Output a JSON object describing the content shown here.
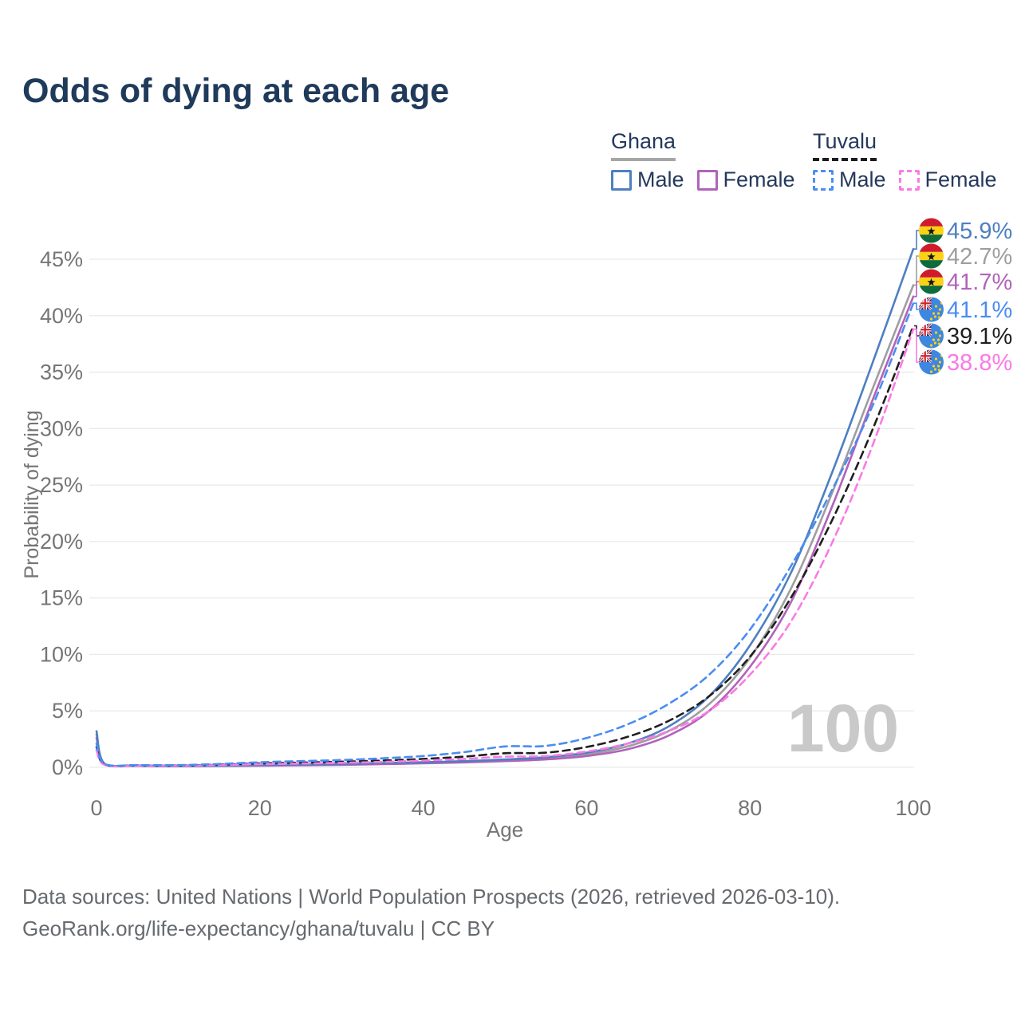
{
  "title": "Odds of dying at each age",
  "legend": {
    "groups": [
      {
        "country": "Ghana",
        "line_style": "solid",
        "underline_color": "#a6a6a6",
        "items": [
          {
            "label": "Male",
            "color": "#4e7fc1"
          },
          {
            "label": "Female",
            "color": "#b163ba"
          }
        ]
      },
      {
        "country": "Tuvalu",
        "line_style": "dashed",
        "underline_color": "#1c1c1c",
        "items": [
          {
            "label": "Male",
            "color": "#4a8df2"
          },
          {
            "label": "Female",
            "color": "#fa7ae4"
          }
        ]
      }
    ]
  },
  "watermark": "100",
  "footer": {
    "line1": "Data sources: United Nations | World Population Prospects (2026, retrieved 2026-03-10).",
    "line2": "GeoRank.org/life-expectancy/ghana/tuvalu | CC BY"
  },
  "chart_data": {
    "type": "line",
    "title": "Odds of dying at each age",
    "xlabel": "Age",
    "ylabel": "Probability of dying",
    "xlim": [
      0,
      100
    ],
    "ylim": [
      0,
      47.5
    ],
    "x_ticks": [
      0,
      20,
      40,
      60,
      80,
      100
    ],
    "y_ticks": [
      "0%",
      "5%",
      "10%",
      "15%",
      "20%",
      "25%",
      "30%",
      "35%",
      "40%",
      "45%"
    ],
    "grid": "horizontal",
    "legend_position": "top-right",
    "ages": [
      0,
      1,
      5,
      10,
      15,
      20,
      25,
      30,
      35,
      40,
      45,
      50,
      55,
      60,
      65,
      70,
      75,
      80,
      85,
      90,
      95,
      100
    ],
    "series": [
      {
        "name": "Ghana Male",
        "country": "Ghana",
        "sex": "male",
        "flag": "ghana",
        "color": "#4e7fc1",
        "dashed": false,
        "end_label": "45.9%",
        "label_color": "#4e7fc1",
        "values": [
          3.2,
          0.3,
          0.15,
          0.12,
          0.15,
          0.2,
          0.25,
          0.3,
          0.38,
          0.45,
          0.55,
          0.7,
          0.9,
          1.3,
          2.1,
          3.6,
          6.3,
          10.8,
          17.2,
          26.0,
          35.8,
          45.9
        ]
      },
      {
        "name": "Ghana Both sexes",
        "country": "Ghana",
        "sex": "both",
        "flag": "ghana",
        "color": "#9e9e9e",
        "dashed": false,
        "end_label": "42.7%",
        "label_color": "#9e9e9e",
        "values": [
          2.9,
          0.27,
          0.14,
          0.11,
          0.13,
          0.17,
          0.21,
          0.26,
          0.32,
          0.4,
          0.5,
          0.62,
          0.8,
          1.15,
          1.85,
          3.2,
          5.6,
          9.7,
          15.8,
          24.2,
          33.5,
          42.7
        ]
      },
      {
        "name": "Ghana Female",
        "country": "Ghana",
        "sex": "female",
        "flag": "ghana",
        "color": "#b163ba",
        "dashed": false,
        "end_label": "41.7%",
        "label_color": "#b163ba",
        "values": [
          2.6,
          0.25,
          0.13,
          0.1,
          0.12,
          0.15,
          0.18,
          0.22,
          0.28,
          0.35,
          0.44,
          0.55,
          0.7,
          1.0,
          1.6,
          2.8,
          5.0,
          8.9,
          14.6,
          23.0,
          32.5,
          41.7
        ]
      },
      {
        "name": "Tuvalu Male",
        "country": "Tuvalu",
        "sex": "male",
        "flag": "tuvalu",
        "color": "#4a8df2",
        "dashed": true,
        "end_label": "41.1%",
        "label_color": "#4a8df2",
        "values": [
          2.1,
          0.3,
          0.2,
          0.2,
          0.3,
          0.45,
          0.55,
          0.65,
          0.8,
          1.0,
          1.35,
          1.85,
          1.9,
          2.6,
          3.8,
          5.6,
          8.2,
          12.2,
          17.8,
          24.5,
          32.0,
          41.1
        ]
      },
      {
        "name": "Tuvalu Both sexes",
        "country": "Tuvalu",
        "sex": "both",
        "flag": "tuvalu",
        "color": "#1f1f1f",
        "dashed": true,
        "end_label": "39.1%",
        "label_color": "#1f1f1f",
        "values": [
          1.8,
          0.26,
          0.17,
          0.16,
          0.24,
          0.35,
          0.42,
          0.5,
          0.6,
          0.75,
          0.95,
          1.25,
          1.3,
          1.8,
          2.7,
          4.1,
          6.3,
          9.8,
          15.0,
          21.8,
          29.9,
          39.1
        ]
      },
      {
        "name": "Tuvalu Female",
        "country": "Tuvalu",
        "sex": "female",
        "flag": "tuvalu",
        "color": "#fa7ae4",
        "dashed": true,
        "end_label": "38.8%",
        "label_color": "#fa7ae4",
        "values": [
          1.5,
          0.22,
          0.15,
          0.14,
          0.2,
          0.28,
          0.33,
          0.4,
          0.48,
          0.6,
          0.75,
          0.95,
          1.0,
          1.4,
          2.1,
          3.2,
          5.0,
          8.2,
          12.9,
          19.8,
          28.5,
          38.8
        ]
      }
    ]
  }
}
